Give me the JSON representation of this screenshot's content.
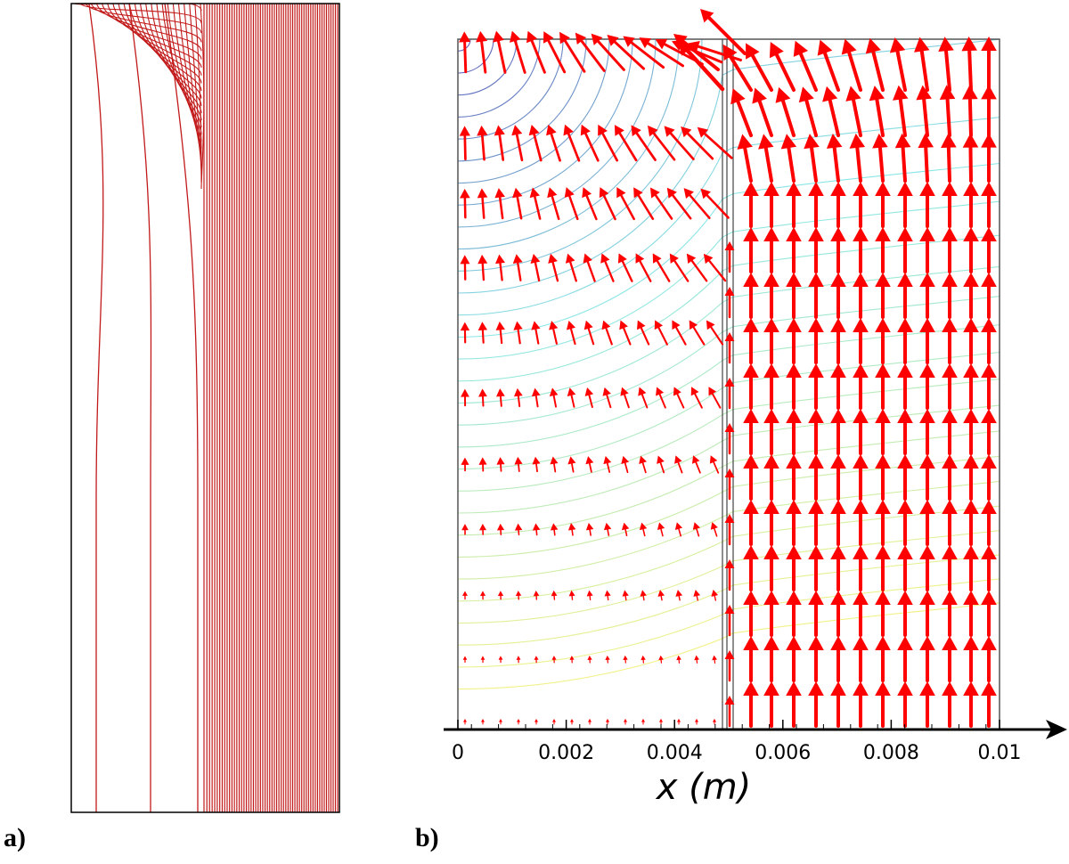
{
  "panels": {
    "a": {
      "label": "a)"
    },
    "b": {
      "label": "b)",
      "axis": {
        "label": "x (m)",
        "ticks": [
          "0",
          "0.002",
          "0.004",
          "0.006",
          "0.008",
          "0.01"
        ],
        "range": [
          0,
          0.01
        ]
      }
    }
  },
  "colors": {
    "field_line": "#c21a1a",
    "arrow": "#ff0000",
    "frame": "#000000",
    "contour_top": "#4b4fb0",
    "contour_mid": "#7ee3e3",
    "contour_bottom": "#f0f07a"
  }
}
